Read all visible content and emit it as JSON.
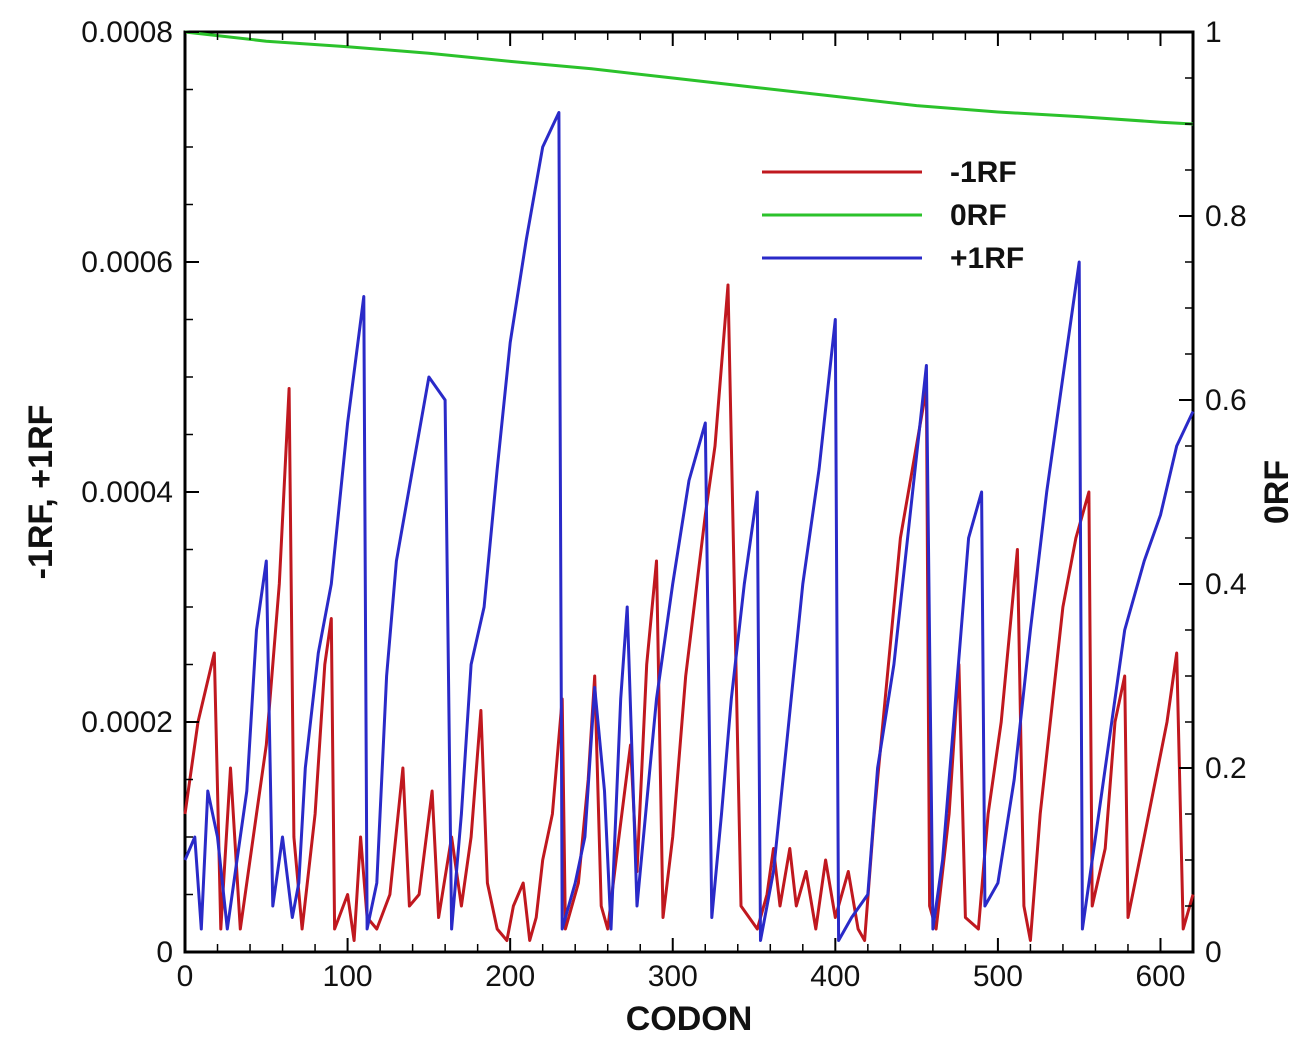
{
  "chart_data": {
    "type": "line",
    "title": "",
    "xlabel": "CODON",
    "ylabel_left": "-1RF, +1RF",
    "ylabel_right": "0RF",
    "xlim": [
      0,
      620
    ],
    "ylim_left": [
      0,
      0.0008
    ],
    "ylim_right": [
      0,
      1
    ],
    "x_ticks": [
      0,
      100,
      200,
      300,
      400,
      500,
      600
    ],
    "x_tick_labels": [
      "0",
      "100",
      "200",
      "300",
      "400",
      "500",
      "600"
    ],
    "y_left_ticks": [
      0,
      0.0002,
      0.0004,
      0.0006,
      0.0008
    ],
    "y_left_tick_labels": [
      "0",
      "0.0002",
      "0.0004",
      "0.0006",
      "0.0008"
    ],
    "y_right_ticks": [
      0,
      0.2,
      0.4,
      0.6,
      0.8,
      1
    ],
    "y_right_tick_labels": [
      "0",
      "0.2",
      "0.4",
      "0.6",
      "0.8",
      "1"
    ],
    "grid": false,
    "legend_position": "upper-right",
    "series": [
      {
        "name": "-1RF",
        "axis": "left",
        "color": "#c0181f",
        "points": [
          [
            0,
            0.00012
          ],
          [
            8,
            0.0002
          ],
          [
            18,
            0.00026
          ],
          [
            22,
            2e-05
          ],
          [
            28,
            0.00016
          ],
          [
            34,
            2e-05
          ],
          [
            44,
            0.00012
          ],
          [
            50,
            0.00018
          ],
          [
            58,
            0.00032
          ],
          [
            64,
            0.00049
          ],
          [
            67,
            0.0001
          ],
          [
            72,
            2e-05
          ],
          [
            80,
            0.00012
          ],
          [
            86,
            0.00025
          ],
          [
            90,
            0.00029
          ],
          [
            92,
            2e-05
          ],
          [
            100,
            5e-05
          ],
          [
            104,
            1e-05
          ],
          [
            108,
            0.0001
          ],
          [
            112,
            3e-05
          ],
          [
            118,
            2e-05
          ],
          [
            126,
            5e-05
          ],
          [
            134,
            0.00016
          ],
          [
            138,
            4e-05
          ],
          [
            144,
            5e-05
          ],
          [
            152,
            0.00014
          ],
          [
            156,
            3e-05
          ],
          [
            164,
            0.0001
          ],
          [
            170,
            4e-05
          ],
          [
            176,
            0.0001
          ],
          [
            182,
            0.00021
          ],
          [
            186,
            6e-05
          ],
          [
            192,
            2e-05
          ],
          [
            198,
            1e-05
          ],
          [
            202,
            4e-05
          ],
          [
            208,
            6e-05
          ],
          [
            212,
            1e-05
          ],
          [
            216,
            3e-05
          ],
          [
            220,
            8e-05
          ],
          [
            226,
            0.00012
          ],
          [
            232,
            0.00022
          ],
          [
            234,
            2e-05
          ],
          [
            242,
            6e-05
          ],
          [
            248,
            0.00015
          ],
          [
            252,
            0.00024
          ],
          [
            256,
            4e-05
          ],
          [
            260,
            2e-05
          ],
          [
            266,
            9e-05
          ],
          [
            274,
            0.00018
          ],
          [
            278,
            7e-05
          ],
          [
            284,
            0.00025
          ],
          [
            290,
            0.00034
          ],
          [
            294,
            3e-05
          ],
          [
            300,
            0.0001
          ],
          [
            308,
            0.00024
          ],
          [
            320,
            0.00038
          ],
          [
            326,
            0.00044
          ],
          [
            334,
            0.00058
          ],
          [
            342,
            4e-05
          ],
          [
            352,
            2e-05
          ],
          [
            358,
            5e-05
          ],
          [
            362,
            9e-05
          ],
          [
            366,
            4e-05
          ],
          [
            372,
            9e-05
          ],
          [
            376,
            4e-05
          ],
          [
            382,
            7e-05
          ],
          [
            388,
            2e-05
          ],
          [
            394,
            8e-05
          ],
          [
            400,
            3e-05
          ],
          [
            408,
            7e-05
          ],
          [
            414,
            2e-05
          ],
          [
            418,
            1e-05
          ],
          [
            424,
            0.00012
          ],
          [
            440,
            0.00036
          ],
          [
            456,
            0.00049
          ],
          [
            458,
            4e-05
          ],
          [
            462,
            2e-05
          ],
          [
            470,
            0.00012
          ],
          [
            476,
            0.00025
          ],
          [
            480,
            3e-05
          ],
          [
            488,
            2e-05
          ],
          [
            494,
            0.00012
          ],
          [
            502,
            0.0002
          ],
          [
            512,
            0.00035
          ],
          [
            516,
            4e-05
          ],
          [
            520,
            1e-05
          ],
          [
            526,
            0.00012
          ],
          [
            540,
            0.0003
          ],
          [
            548,
            0.00036
          ],
          [
            556,
            0.0004
          ],
          [
            558,
            4e-05
          ],
          [
            566,
            9e-05
          ],
          [
            572,
            0.0002
          ],
          [
            578,
            0.00024
          ],
          [
            580,
            3e-05
          ],
          [
            590,
            0.0001
          ],
          [
            604,
            0.0002
          ],
          [
            610,
            0.00026
          ],
          [
            614,
            2e-05
          ],
          [
            620,
            5e-05
          ]
        ]
      },
      {
        "name": "0RF",
        "axis": "right",
        "color": "#2bc22b",
        "points": [
          [
            0,
            1.0
          ],
          [
            50,
            0.99
          ],
          [
            100,
            0.984
          ],
          [
            150,
            0.977
          ],
          [
            200,
            0.968
          ],
          [
            250,
            0.96
          ],
          [
            300,
            0.95
          ],
          [
            350,
            0.94
          ],
          [
            400,
            0.93
          ],
          [
            450,
            0.92
          ],
          [
            500,
            0.913
          ],
          [
            550,
            0.908
          ],
          [
            600,
            0.902
          ],
          [
            620,
            0.9
          ]
        ]
      },
      {
        "name": "+1RF",
        "axis": "left",
        "color": "#2a2ac8",
        "points": [
          [
            0,
            8e-05
          ],
          [
            6,
            0.0001
          ],
          [
            10,
            2e-05
          ],
          [
            14,
            0.00014
          ],
          [
            20,
            0.0001
          ],
          [
            26,
            2e-05
          ],
          [
            32,
            8e-05
          ],
          [
            38,
            0.00014
          ],
          [
            44,
            0.00028
          ],
          [
            50,
            0.00034
          ],
          [
            54,
            4e-05
          ],
          [
            60,
            0.0001
          ],
          [
            66,
            3e-05
          ],
          [
            70,
            6e-05
          ],
          [
            74,
            0.00016
          ],
          [
            82,
            0.00026
          ],
          [
            90,
            0.00032
          ],
          [
            100,
            0.00046
          ],
          [
            110,
            0.00057
          ],
          [
            112,
            2e-05
          ],
          [
            118,
            6e-05
          ],
          [
            124,
            0.00024
          ],
          [
            130,
            0.00034
          ],
          [
            140,
            0.00042
          ],
          [
            150,
            0.0005
          ],
          [
            160,
            0.00048
          ],
          [
            164,
            2e-05
          ],
          [
            170,
            0.00012
          ],
          [
            176,
            0.00025
          ],
          [
            184,
            0.0003
          ],
          [
            192,
            0.00042
          ],
          [
            200,
            0.00053
          ],
          [
            210,
            0.00062
          ],
          [
            220,
            0.0007
          ],
          [
            230,
            0.00073
          ],
          [
            232,
            2e-05
          ],
          [
            240,
            6e-05
          ],
          [
            246,
            0.0001
          ],
          [
            252,
            0.00023
          ],
          [
            258,
            0.00014
          ],
          [
            262,
            2e-05
          ],
          [
            268,
            0.00022
          ],
          [
            272,
            0.0003
          ],
          [
            278,
            4e-05
          ],
          [
            284,
            0.00013
          ],
          [
            290,
            0.00022
          ],
          [
            300,
            0.00032
          ],
          [
            310,
            0.00041
          ],
          [
            320,
            0.00046
          ],
          [
            324,
            3e-05
          ],
          [
            330,
            0.00012
          ],
          [
            336,
            0.00022
          ],
          [
            344,
            0.00032
          ],
          [
            352,
            0.0004
          ],
          [
            354,
            1e-05
          ],
          [
            362,
            7e-05
          ],
          [
            370,
            0.00018
          ],
          [
            380,
            0.00032
          ],
          [
            390,
            0.00042
          ],
          [
            400,
            0.00055
          ],
          [
            402,
            1e-05
          ],
          [
            410,
            3e-05
          ],
          [
            420,
            5e-05
          ],
          [
            426,
            0.00016
          ],
          [
            436,
            0.00025
          ],
          [
            446,
            0.00038
          ],
          [
            456,
            0.00051
          ],
          [
            460,
            2e-05
          ],
          [
            466,
            8e-05
          ],
          [
            474,
            0.00022
          ],
          [
            482,
            0.00036
          ],
          [
            490,
            0.0004
          ],
          [
            492,
            4e-05
          ],
          [
            500,
            6e-05
          ],
          [
            510,
            0.00015
          ],
          [
            520,
            0.00028
          ],
          [
            530,
            0.0004
          ],
          [
            540,
            0.0005
          ],
          [
            550,
            0.0006
          ],
          [
            552,
            2e-05
          ],
          [
            560,
            0.0001
          ],
          [
            568,
            0.00018
          ],
          [
            578,
            0.00028
          ],
          [
            590,
            0.00034
          ],
          [
            600,
            0.00038
          ],
          [
            610,
            0.00044
          ],
          [
            620,
            0.00047
          ]
        ]
      }
    ]
  }
}
